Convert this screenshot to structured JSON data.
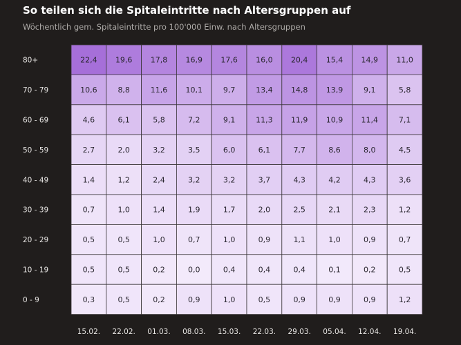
{
  "colors": {
    "background": "#201d1c",
    "scale_low": "#f3eafb",
    "scale_high": "#a66fd9",
    "grid": "#3a3638"
  },
  "chart_data": {
    "type": "heatmap",
    "title": "So teilen sich die Spitaleintritte nach Altersgruppen auf",
    "subtitle": "Wöchentlich gem. Spitaleintritte pro 100'000 Einw. nach Altersgruppen",
    "columns": [
      "15.02.",
      "22.02.",
      "01.03.",
      "08.03.",
      "15.03.",
      "22.03.",
      "29.03.",
      "05.04.",
      "12.04.",
      "19.04."
    ],
    "rows": [
      "80+",
      "70 - 79",
      "60 - 69",
      "50 - 59",
      "40 - 49",
      "30 - 39",
      "20 - 29",
      "10 - 19",
      "0 - 9"
    ],
    "values": [
      [
        22.4,
        19.6,
        17.8,
        16.9,
        17.6,
        16.0,
        20.4,
        15.4,
        14.9,
        11.0
      ],
      [
        10.6,
        8.8,
        11.6,
        10.1,
        9.7,
        13.4,
        14.8,
        13.9,
        9.1,
        5.8
      ],
      [
        4.6,
        6.1,
        5.8,
        7.2,
        9.1,
        11.3,
        11.9,
        10.9,
        11.4,
        7.1
      ],
      [
        2.7,
        2.0,
        3.2,
        3.5,
        6.0,
        6.1,
        7.7,
        8.6,
        8.0,
        4.5
      ],
      [
        1.4,
        1.2,
        2.4,
        3.2,
        3.2,
        3.7,
        4.3,
        4.2,
        4.3,
        3.6
      ],
      [
        0.7,
        1.0,
        1.4,
        1.9,
        1.7,
        2.0,
        2.5,
        2.1,
        2.3,
        1.2
      ],
      [
        0.5,
        0.5,
        1.0,
        0.7,
        1.0,
        0.9,
        1.1,
        1.0,
        0.9,
        0.7
      ],
      [
        0.5,
        0.5,
        0.2,
        0.0,
        0.4,
        0.4,
        0.4,
        0.1,
        0.2,
        0.5
      ],
      [
        0.3,
        0.5,
        0.2,
        0.9,
        1.0,
        0.5,
        0.9,
        0.9,
        0.9,
        1.2
      ]
    ],
    "value_labels": [
      [
        "22,4",
        "19,6",
        "17,8",
        "16,9",
        "17,6",
        "16,0",
        "20,4",
        "15,4",
        "14,9",
        "11,0"
      ],
      [
        "10,6",
        "8,8",
        "11,6",
        "10,1",
        "9,7",
        "13,4",
        "14,8",
        "13,9",
        "9,1",
        "5,8"
      ],
      [
        "4,6",
        "6,1",
        "5,8",
        "7,2",
        "9,1",
        "11,3",
        "11,9",
        "10,9",
        "11,4",
        "7,1"
      ],
      [
        "2,7",
        "2,0",
        "3,2",
        "3,5",
        "6,0",
        "6,1",
        "7,7",
        "8,6",
        "8,0",
        "4,5"
      ],
      [
        "1,4",
        "1,2",
        "2,4",
        "3,2",
        "3,2",
        "3,7",
        "4,3",
        "4,2",
        "4,3",
        "3,6"
      ],
      [
        "0,7",
        "1,0",
        "1,4",
        "1,9",
        "1,7",
        "2,0",
        "2,5",
        "2,1",
        "2,3",
        "1,2"
      ],
      [
        "0,5",
        "0,5",
        "1,0",
        "0,7",
        "1,0",
        "0,9",
        "1,1",
        "1,0",
        "0,9",
        "0,7"
      ],
      [
        "0,5",
        "0,5",
        "0,2",
        "0,0",
        "0,4",
        "0,4",
        "0,4",
        "0,1",
        "0,2",
        "0,5"
      ],
      [
        "0,3",
        "0,5",
        "0,2",
        "0,9",
        "1,0",
        "0,5",
        "0,9",
        "0,9",
        "0,9",
        "1,2"
      ]
    ],
    "value_range": [
      0,
      22.4
    ]
  }
}
